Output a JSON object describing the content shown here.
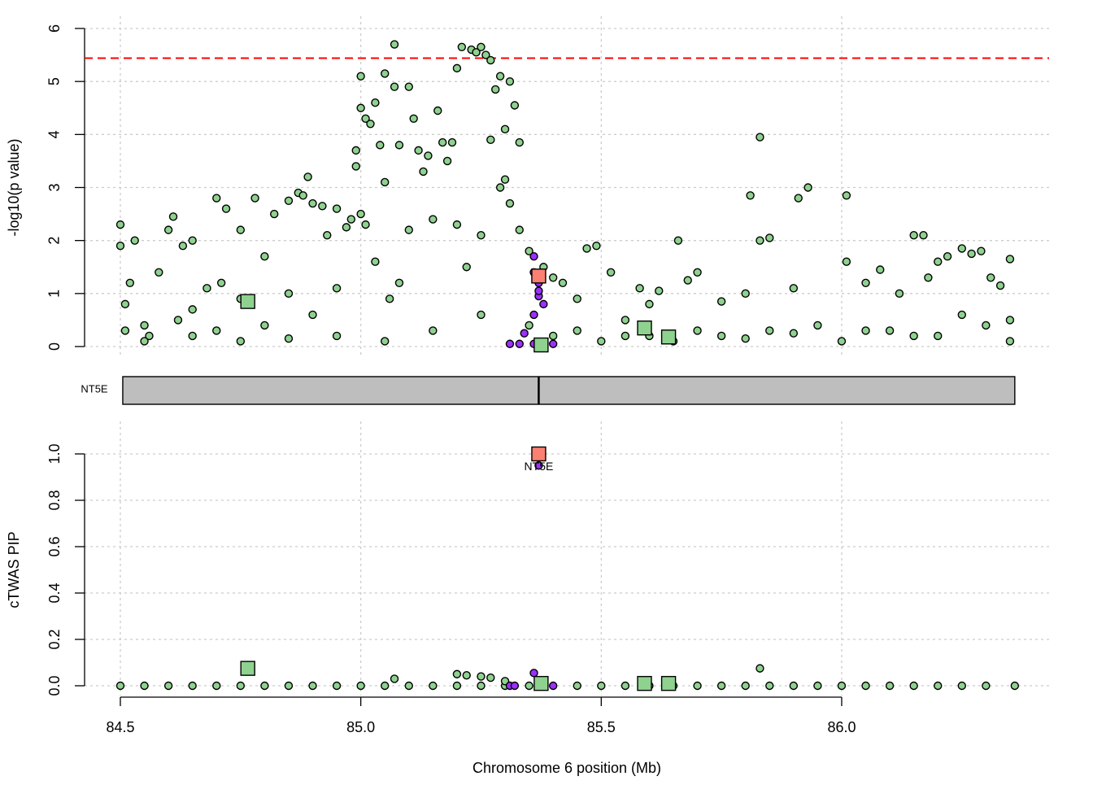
{
  "chart_data": [
    {
      "type": "scatter",
      "ylabel": "-log10(p value)",
      "ylim": [
        0,
        6
      ],
      "yticks": [
        0,
        1,
        2,
        3,
        4,
        5,
        6
      ],
      "grid": true,
      "threshold": 5.44,
      "threshold_color": "#ff0000",
      "gene_track": {
        "label": "NT5E",
        "start": 84.505,
        "end": 86.36,
        "tss": 85.37
      },
      "series": [
        {
          "marker": "circle",
          "color": "#8fd18f",
          "x": [
            84.5,
            84.5,
            84.51,
            84.51,
            84.52,
            84.53,
            84.55,
            84.58,
            84.6,
            84.61,
            84.63,
            84.65,
            84.65,
            84.68,
            84.7,
            84.71,
            84.72,
            84.75,
            84.78,
            84.8,
            84.82,
            84.85,
            84.87,
            84.88,
            84.9,
            84.92,
            84.95,
            84.97,
            84.98,
            84.89,
            84.93,
            85.0,
            85.01,
            84.99,
            84.99,
            85.0,
            85.0,
            85.01,
            85.02,
            85.03,
            85.04,
            85.05,
            85.05,
            85.07,
            85.07,
            85.08,
            85.1,
            85.11,
            85.12,
            85.13,
            85.14,
            85.16,
            85.17,
            85.18,
            85.19,
            85.2,
            85.21,
            85.23,
            85.24,
            85.25,
            85.26,
            85.27,
            85.28,
            85.29,
            85.3,
            85.31,
            85.32,
            85.33,
            85.27,
            85.29,
            85.3,
            85.31,
            85.33,
            85.25,
            85.2,
            85.22,
            85.15,
            85.1,
            85.08,
            85.06,
            85.03,
            84.95,
            84.9,
            84.85,
            84.8,
            84.75,
            84.7,
            84.62,
            84.56,
            85.35,
            85.38,
            85.4,
            85.42,
            85.45,
            85.47,
            85.49,
            85.52,
            85.55,
            85.58,
            85.6,
            85.62,
            85.66,
            85.68,
            85.7,
            85.75,
            85.8,
            85.81,
            85.83,
            85.83,
            85.85,
            85.9,
            85.91,
            85.93,
            86.01,
            86.01,
            86.05,
            86.08,
            86.12,
            86.15,
            86.17,
            86.18,
            86.2,
            86.22,
            86.25,
            86.27,
            86.29,
            86.31,
            86.33,
            86.35,
            86.35,
            85.4,
            85.5,
            85.6,
            85.7,
            85.8,
            85.9,
            86.0,
            86.1,
            86.2,
            86.3,
            85.15,
            85.05,
            84.95,
            84.85,
            84.75,
            84.65,
            84.55,
            85.25,
            85.35,
            85.45,
            85.55,
            85.65,
            85.75,
            85.85,
            85.95,
            86.05,
            86.15,
            86.25,
            86.35
          ],
          "values": [
            2.3,
            1.9,
            0.8,
            0.3,
            1.2,
            2.0,
            0.4,
            1.4,
            2.2,
            2.45,
            1.9,
            2.0,
            0.7,
            1.1,
            2.8,
            1.2,
            2.6,
            2.2,
            2.8,
            1.7,
            2.5,
            2.75,
            2.9,
            2.85,
            2.7,
            2.65,
            2.6,
            2.25,
            2.4,
            3.2,
            2.1,
            2.5,
            2.3,
            3.4,
            3.7,
            4.5,
            5.1,
            4.3,
            4.2,
            4.6,
            3.8,
            3.1,
            5.15,
            5.7,
            4.9,
            3.8,
            4.9,
            4.3,
            3.7,
            3.3,
            3.6,
            4.45,
            3.85,
            3.5,
            3.85,
            5.25,
            5.65,
            5.6,
            5.55,
            5.65,
            5.5,
            5.4,
            4.85,
            5.1,
            4.1,
            5.0,
            4.55,
            3.85,
            3.9,
            3.0,
            3.15,
            2.7,
            2.2,
            2.1,
            2.3,
            1.5,
            2.4,
            2.2,
            1.2,
            0.9,
            1.6,
            1.1,
            0.6,
            1.0,
            0.4,
            0.9,
            0.3,
            0.5,
            0.2,
            1.8,
            1.5,
            1.3,
            1.2,
            0.9,
            1.85,
            1.9,
            1.4,
            0.5,
            1.1,
            0.8,
            1.05,
            2.0,
            1.25,
            1.4,
            0.85,
            1.0,
            2.85,
            3.95,
            2.0,
            2.05,
            1.1,
            2.8,
            3.0,
            2.85,
            1.6,
            1.2,
            1.45,
            1.0,
            2.1,
            2.1,
            1.3,
            1.6,
            1.7,
            1.85,
            1.75,
            1.8,
            1.3,
            1.15,
            1.65,
            0.5,
            0.2,
            0.1,
            0.2,
            0.3,
            0.15,
            0.25,
            0.1,
            0.3,
            0.2,
            0.4,
            0.3,
            0.1,
            0.2,
            0.15,
            0.1,
            0.2,
            0.1,
            0.6,
            0.4,
            0.3,
            0.2,
            0.1,
            0.2,
            0.3,
            0.4,
            0.3,
            0.2,
            0.6,
            0.1
          ]
        },
        {
          "marker": "circle",
          "color": "#9b30ff",
          "x": [
            85.36,
            85.36,
            85.37,
            85.37,
            85.38,
            85.36,
            85.34,
            85.33,
            85.31,
            85.36,
            85.38,
            85.4,
            85.37
          ],
          "values": [
            1.7,
            1.4,
            1.2,
            0.95,
            0.8,
            0.6,
            0.25,
            0.05,
            0.05,
            0.05,
            0.05,
            0.05,
            1.05
          ]
        },
        {
          "marker": "square",
          "color": "#8fd18f",
          "x": [
            84.765,
            85.375,
            85.59,
            85.64
          ],
          "values": [
            0.85,
            0.03,
            0.35,
            0.18
          ]
        },
        {
          "marker": "square",
          "color": "#fa8072",
          "x": [
            85.37
          ],
          "values": [
            1.33
          ]
        }
      ]
    },
    {
      "type": "scatter",
      "ylabel": "cTWAS PIP",
      "xlabel": "Chromosome 6 position (Mb)",
      "xlim": [
        84.4256,
        86.4313
      ],
      "xticks": [
        84.5,
        {
          "value": 85,
          "label": "85.0"
        },
        85.5,
        {
          "value": 86,
          "label": "86.0"
        }
      ],
      "ylim": [
        0,
        1
      ],
      "yticks": [
        {
          "value": 0,
          "label": "0.0"
        },
        0.2,
        0.4,
        0.6,
        0.8,
        {
          "value": 1,
          "label": "1.0"
        }
      ],
      "grid": true,
      "annotations": [
        {
          "text": "NT5E",
          "x": 85.37,
          "y": 0.95
        }
      ],
      "series": [
        {
          "marker": "circle",
          "color": "#8fd18f",
          "x": [
            84.5,
            84.55,
            84.6,
            84.65,
            84.7,
            84.75,
            84.8,
            84.85,
            84.9,
            84.95,
            85.0,
            85.05,
            85.1,
            85.15,
            85.2,
            85.25,
            85.3,
            85.35,
            85.45,
            85.5,
            85.55,
            85.6,
            85.65,
            85.7,
            85.75,
            85.8,
            85.85,
            85.9,
            85.95,
            86.0,
            86.05,
            86.1,
            86.15,
            86.2,
            86.25,
            86.3,
            86.36,
            85.07,
            85.2,
            85.22,
            85.25,
            85.27,
            85.3,
            85.83
          ],
          "values": [
            0,
            0,
            0,
            0,
            0,
            0,
            0,
            0,
            0,
            0,
            0,
            0,
            0,
            0,
            0,
            0,
            0,
            0,
            0,
            0,
            0,
            0,
            0,
            0,
            0,
            0,
            0,
            0,
            0,
            0,
            0,
            0,
            0,
            0,
            0,
            0,
            0,
            0.03,
            0.05,
            0.045,
            0.04,
            0.035,
            0.02,
            0.075
          ]
        },
        {
          "marker": "circle",
          "color": "#9b30ff",
          "x": [
            85.36,
            85.37,
            85.31,
            85.32,
            85.4
          ],
          "values": [
            0.055,
            0.95,
            0,
            0,
            0
          ]
        },
        {
          "marker": "square",
          "color": "#8fd18f",
          "x": [
            84.765,
            85.375,
            85.59,
            85.64
          ],
          "values": [
            0.075,
            0.01,
            0.01,
            0.01
          ]
        },
        {
          "marker": "square",
          "color": "#fa8072",
          "x": [
            85.37
          ],
          "values": [
            1.0
          ]
        }
      ]
    }
  ]
}
